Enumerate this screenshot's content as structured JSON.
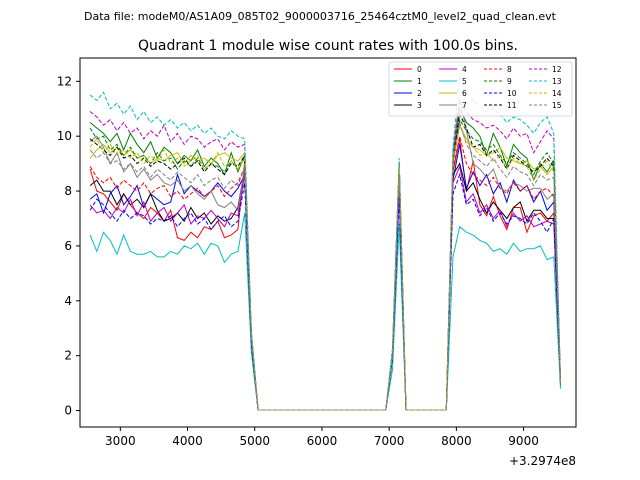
{
  "header": {
    "data_file": "Data file: modeM0/AS1A09_085T02_9000003716_25464cztM0_level2_quad_clean.evt"
  },
  "chart_data": {
    "type": "line",
    "title": "Quadrant 1 module wise count rates with 100.0s bins.",
    "xlabel": "",
    "ylabel": "",
    "x_offset_label": "+3.2974e8",
    "xlim": [
      2400,
      9780
    ],
    "ylim": [
      -0.6,
      12.85
    ],
    "x_ticks": [
      3000,
      4000,
      5000,
      6000,
      7000,
      8000,
      9000
    ],
    "y_ticks": [
      0,
      2,
      4,
      6,
      8,
      10,
      12
    ],
    "grid": false,
    "legend_position": "top-right",
    "x": [
      2550,
      2650,
      2750,
      2850,
      2950,
      3050,
      3150,
      3250,
      3350,
      3450,
      3550,
      3650,
      3750,
      3850,
      3950,
      4050,
      4150,
      4250,
      4350,
      4450,
      4550,
      4650,
      4750,
      4850,
      4950,
      5050,
      6950,
      7050,
      7150,
      7250,
      7850,
      7950,
      8050,
      8150,
      8250,
      8350,
      8450,
      8550,
      8650,
      8750,
      8850,
      8950,
      9050,
      9150,
      9250,
      9350,
      9450,
      9550
    ],
    "series": [
      {
        "name": "0",
        "color": "#ff0000",
        "dashed": false,
        "values": [
          8.8,
          8.0,
          7.9,
          7.6,
          7.3,
          7.9,
          7.5,
          7.2,
          7.0,
          7.4,
          7.2,
          6.9,
          7.3,
          6.3,
          6.2,
          6.5,
          6.3,
          6.7,
          6.6,
          6.9,
          6.3,
          6.4,
          6.6,
          9.1,
          2.5,
          0.02,
          0.02,
          2.0,
          8.2,
          0.02,
          0.02,
          8.7,
          9.9,
          8.0,
          9.1,
          7.5,
          7.1,
          7.8,
          7.1,
          6.6,
          7.4,
          7.4,
          6.5,
          7.1,
          7.2,
          6.9,
          7.2,
          1.1
        ]
      },
      {
        "name": "1",
        "color": "#008000",
        "dashed": false,
        "values": [
          10.5,
          10.3,
          10.1,
          9.8,
          10.1,
          9.5,
          10.1,
          9.7,
          9.4,
          9.8,
          9.2,
          9.6,
          9.4,
          9.0,
          9.3,
          9.1,
          9.5,
          8.9,
          9.2,
          9.0,
          8.6,
          9.4,
          8.7,
          9.3,
          2.8,
          0.02,
          0.02,
          2.1,
          9.0,
          0.02,
          0.02,
          9.2,
          11.0,
          10.5,
          10.3,
          10.0,
          9.3,
          10.1,
          9.6,
          8.9,
          9.7,
          9.4,
          9.2,
          8.4,
          9.0,
          8.7,
          9.1,
          1.0
        ]
      },
      {
        "name": "2",
        "color": "#0000ff",
        "dashed": false,
        "values": [
          7.7,
          7.9,
          7.2,
          7.9,
          8.2,
          7.5,
          7.8,
          8.2,
          7.4,
          7.9,
          7.7,
          7.5,
          7.6,
          8.6,
          7.9,
          8.2,
          8.0,
          7.8,
          8.0,
          8.3,
          8.0,
          7.8,
          8.1,
          8.6,
          2.5,
          0.02,
          0.02,
          2.0,
          8.5,
          0.02,
          0.02,
          8.4,
          9.7,
          8.1,
          8.7,
          8.2,
          8.6,
          7.9,
          8.3,
          7.6,
          8.4,
          8.0,
          8.2,
          7.6,
          8.0,
          7.3,
          7.6,
          0.9
        ]
      },
      {
        "name": "3",
        "color": "#000000",
        "dashed": false,
        "values": [
          8.2,
          8.4,
          8.0,
          8.0,
          7.5,
          7.9,
          7.5,
          7.7,
          7.4,
          7.9,
          7.3,
          6.9,
          7.0,
          7.2,
          6.9,
          7.4,
          7.0,
          7.2,
          6.8,
          7.1,
          6.9,
          7.0,
          7.4,
          8.8,
          2.5,
          0.02,
          0.02,
          2.0,
          8.3,
          0.02,
          0.02,
          8.6,
          9.0,
          8.0,
          8.3,
          7.7,
          7.2,
          7.6,
          7.3,
          7.0,
          7.4,
          7.6,
          6.9,
          7.3,
          7.3,
          7.0,
          7.0,
          1.0
        ]
      },
      {
        "name": "4",
        "color": "#bf00bf",
        "dashed": false,
        "values": [
          7.5,
          7.2,
          7.3,
          7.0,
          7.4,
          7.2,
          7.7,
          7.1,
          7.6,
          6.9,
          7.2,
          7.4,
          6.9,
          7.2,
          7.5,
          6.8,
          7.1,
          7.0,
          7.3,
          7.0,
          6.7,
          7.2,
          7.1,
          8.6,
          2.4,
          0.02,
          0.02,
          1.9,
          7.9,
          0.02,
          0.02,
          8.3,
          8.9,
          7.6,
          7.9,
          7.2,
          7.5,
          7.0,
          7.3,
          6.7,
          7.2,
          6.9,
          7.1,
          6.7,
          6.8,
          6.9,
          6.8,
          1.0
        ]
      },
      {
        "name": "5",
        "color": "#00bfbf",
        "dashed": false,
        "values": [
          6.4,
          5.8,
          6.5,
          6.2,
          5.7,
          6.4,
          5.8,
          5.7,
          5.7,
          5.8,
          5.6,
          5.6,
          5.8,
          5.7,
          6.0,
          5.9,
          6.1,
          5.7,
          6.1,
          6.0,
          5.4,
          5.7,
          5.8,
          7.2,
          2.1,
          0.02,
          0.02,
          1.5,
          6.8,
          0.02,
          0.02,
          5.6,
          6.7,
          6.5,
          6.4,
          6.2,
          6.1,
          5.8,
          5.9,
          5.7,
          6.1,
          5.8,
          5.9,
          5.9,
          6.0,
          5.5,
          5.6,
          0.8
        ]
      },
      {
        "name": "6",
        "color": "#bfbf00",
        "dashed": false,
        "values": [
          9.2,
          9.5,
          9.7,
          9.4,
          9.6,
          9.3,
          9.5,
          9.2,
          9.3,
          9.0,
          9.2,
          9.1,
          9.3,
          9.4,
          9.0,
          9.3,
          9.1,
          9.2,
          9.0,
          9.3,
          9.4,
          9.2,
          9.1,
          9.4,
          2.7,
          0.02,
          0.02,
          2.1,
          9.0,
          0.02,
          0.02,
          9.0,
          10.4,
          9.9,
          9.6,
          9.5,
          9.3,
          9.4,
          9.6,
          9.2,
          9.1,
          9.0,
          9.1,
          8.8,
          8.9,
          8.6,
          8.9,
          1.0
        ]
      },
      {
        "name": "7",
        "color": "#808080",
        "dashed": false,
        "values": [
          9.8,
          10.0,
          9.6,
          9.0,
          9.4,
          8.7,
          9.0,
          8.5,
          8.8,
          8.4,
          8.6,
          8.3,
          8.2,
          8.4,
          8.0,
          8.2,
          7.9,
          7.7,
          8.0,
          7.5,
          7.4,
          7.6,
          7.3,
          8.9,
          2.5,
          0.02,
          0.02,
          2.0,
          8.6,
          0.02,
          0.02,
          9.5,
          11.4,
          10.2,
          9.0,
          8.8,
          8.5,
          8.8,
          8.1,
          8.0,
          8.3,
          8.2,
          8.0,
          8.1,
          8.1,
          7.7,
          7.9,
          1.0
        ]
      },
      {
        "name": "8",
        "color": "#ff0000",
        "dashed": true,
        "values": [
          8.9,
          8.5,
          8.3,
          8.5,
          8.1,
          8.4,
          8.2,
          8.0,
          8.3,
          7.9,
          8.1,
          8.2,
          7.8,
          8.0,
          7.7,
          7.9,
          8.1,
          7.8,
          8.0,
          8.2,
          7.8,
          8.1,
          8.3,
          8.9,
          2.6,
          0.02,
          0.02,
          2.0,
          8.4,
          0.02,
          0.02,
          8.8,
          10.0,
          9.0,
          8.6,
          8.4,
          8.2,
          8.5,
          8.1,
          7.9,
          8.3,
          8.0,
          8.2,
          7.7,
          8.0,
          8.1,
          7.8,
          1.0
        ]
      },
      {
        "name": "9",
        "color": "#008000",
        "dashed": true,
        "values": [
          10.3,
          9.9,
          10.0,
          9.5,
          9.7,
          9.3,
          9.6,
          9.2,
          9.3,
          9.0,
          9.4,
          9.1,
          9.2,
          8.8,
          9.1,
          8.9,
          9.2,
          8.8,
          9.0,
          8.9,
          8.7,
          9.1,
          8.8,
          9.2,
          2.7,
          0.02,
          0.02,
          2.1,
          9.0,
          0.02,
          0.02,
          9.0,
          10.6,
          10.2,
          9.9,
          9.8,
          9.5,
          9.7,
          9.3,
          9.0,
          9.4,
          9.2,
          9.0,
          8.6,
          9.1,
          9.4,
          9.0,
          1.0
        ]
      },
      {
        "name": "10",
        "color": "#0000ff",
        "dashed": true,
        "values": [
          7.3,
          7.7,
          7.5,
          7.2,
          6.9,
          7.3,
          7.0,
          7.2,
          7.1,
          6.8,
          7.0,
          6.9,
          7.1,
          6.7,
          7.0,
          7.2,
          6.8,
          7.0,
          6.6,
          6.9,
          7.1,
          6.7,
          6.9,
          8.3,
          2.4,
          0.02,
          0.02,
          1.9,
          7.8,
          0.02,
          0.02,
          7.9,
          8.6,
          7.5,
          7.7,
          7.1,
          7.4,
          6.9,
          7.2,
          6.8,
          7.1,
          7.0,
          6.8,
          7.2,
          6.9,
          6.5,
          7.0,
          1.0
        ]
      },
      {
        "name": "11",
        "color": "#000000",
        "dashed": true,
        "values": [
          9.9,
          9.7,
          9.5,
          9.3,
          9.6,
          9.2,
          9.3,
          9.0,
          9.2,
          8.9,
          9.1,
          9.0,
          8.8,
          9.0,
          9.2,
          8.9,
          9.1,
          8.7,
          9.0,
          8.8,
          8.6,
          9.0,
          8.9,
          9.3,
          2.7,
          0.02,
          0.02,
          2.1,
          8.9,
          0.02,
          0.02,
          9.1,
          10.8,
          10.3,
          9.6,
          9.7,
          9.3,
          9.5,
          9.2,
          8.8,
          9.3,
          9.1,
          8.9,
          8.7,
          8.9,
          9.2,
          8.9,
          1.0
        ]
      },
      {
        "name": "12",
        "color": "#bf00bf",
        "dashed": true,
        "values": [
          10.9,
          10.7,
          10.4,
          10.6,
          10.2,
          10.5,
          10.1,
          10.3,
          9.9,
          10.2,
          10.0,
          10.4,
          9.8,
          10.1,
          9.7,
          10.0,
          9.9,
          9.6,
          9.8,
          9.9,
          9.5,
          9.8,
          9.6,
          9.7,
          2.8,
          0.02,
          0.02,
          2.2,
          9.1,
          0.02,
          0.02,
          9.3,
          11.3,
          10.9,
          10.6,
          10.5,
          10.3,
          10.4,
          10.2,
          9.9,
          10.3,
          10.0,
          10.1,
          9.4,
          9.8,
          10.2,
          9.9,
          1.1
        ]
      },
      {
        "name": "13",
        "color": "#00bfbf",
        "dashed": true,
        "values": [
          11.5,
          11.3,
          11.6,
          11.0,
          11.2,
          10.8,
          11.1,
          10.6,
          10.9,
          10.5,
          10.7,
          10.4,
          10.6,
          10.3,
          10.5,
          10.2,
          10.4,
          10.1,
          10.3,
          10.0,
          9.9,
          10.2,
          10.0,
          9.9,
          2.9,
          0.02,
          0.02,
          2.3,
          9.2,
          0.02,
          0.02,
          9.6,
          12.2,
          11.6,
          11.3,
          11.1,
          10.9,
          11.0,
          10.8,
          10.5,
          10.7,
          10.6,
          10.4,
          10.1,
          10.5,
          10.7,
          10.1,
          1.1
        ]
      },
      {
        "name": "14",
        "color": "#bfbf00",
        "dashed": true,
        "values": [
          9.6,
          9.9,
          9.4,
          9.7,
          9.3,
          9.5,
          9.2,
          9.4,
          9.0,
          9.3,
          9.1,
          9.5,
          9.0,
          9.2,
          8.9,
          9.1,
          9.3,
          8.8,
          9.0,
          9.4,
          8.9,
          9.1,
          8.8,
          9.2,
          2.7,
          0.02,
          0.02,
          2.1,
          8.9,
          0.02,
          0.02,
          9.2,
          10.4,
          9.8,
          9.6,
          9.3,
          9.4,
          9.1,
          9.3,
          8.8,
          9.2,
          9.0,
          8.9,
          8.4,
          8.8,
          9.1,
          8.7,
          1.0
        ]
      },
      {
        "name": "15",
        "color": "#808080",
        "dashed": true,
        "values": [
          9.5,
          9.2,
          9.4,
          9.0,
          9.1,
          8.8,
          9.0,
          8.7,
          8.9,
          8.5,
          8.8,
          8.6,
          8.4,
          8.7,
          8.5,
          8.3,
          8.6,
          8.2,
          8.4,
          8.5,
          8.1,
          8.4,
          8.2,
          8.9,
          2.6,
          0.02,
          0.02,
          2.0,
          8.6,
          0.02,
          0.02,
          9.0,
          10.5,
          9.7,
          9.3,
          9.1,
          8.9,
          9.2,
          8.8,
          8.5,
          8.9,
          8.7,
          8.6,
          8.2,
          8.6,
          8.4,
          8.5,
          1.0
        ]
      }
    ]
  }
}
